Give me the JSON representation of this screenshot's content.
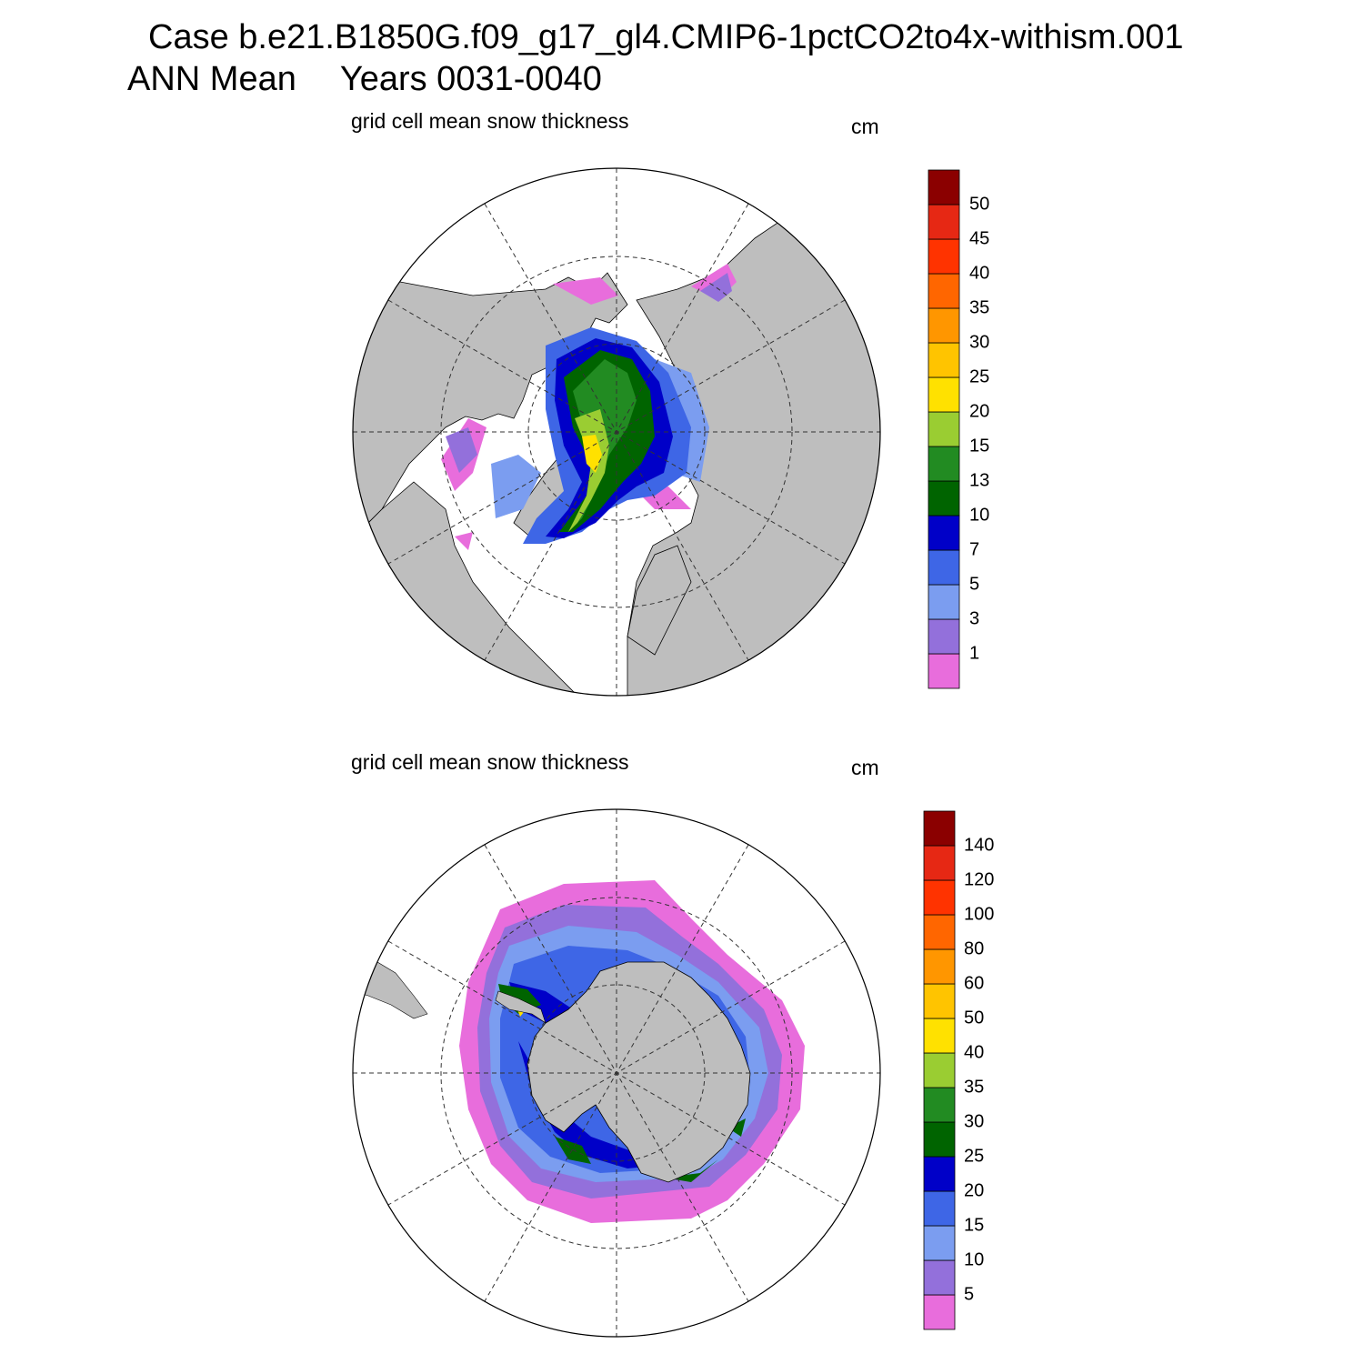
{
  "header": {
    "case_title": "Case b.e21.B1850G.f09_g17_gl4.CMIP6-1pctCO2to4x-withism.001",
    "season": "ANN Mean",
    "years": "Years 0031-0040"
  },
  "panels": [
    {
      "hemisphere": "north",
      "title": "grid cell mean snow thickness",
      "units": "cm",
      "colorbar_labels": [
        "50",
        "45",
        "40",
        "35",
        "30",
        "25",
        "20",
        "15",
        "13",
        "10",
        "7",
        "5",
        "3",
        "1"
      ]
    },
    {
      "hemisphere": "south",
      "title": "grid cell mean snow thickness",
      "units": "cm",
      "colorbar_labels": [
        "140",
        "120",
        "100",
        "80",
        "60",
        "50",
        "40",
        "35",
        "30",
        "25",
        "20",
        "15",
        "10",
        "5"
      ]
    }
  ],
  "colors": {
    "land": "#bebebe",
    "ocean": "#ffffff",
    "levels": [
      "#e86ddc",
      "#9370db",
      "#7b9df0",
      "#3e66e6",
      "#0000c8",
      "#006400",
      "#228b22",
      "#9acd32",
      "#ffe100",
      "#ffc400",
      "#ff9600",
      "#ff6600",
      "#ff3300",
      "#e62814",
      "#8b0000"
    ]
  }
}
